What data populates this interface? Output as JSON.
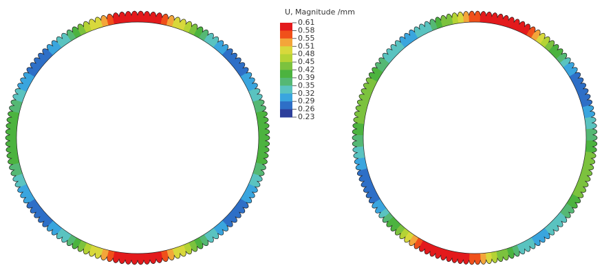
{
  "legend": {
    "title": "U, Magnitude /mm",
    "labels": [
      "0.61",
      "0.58",
      "0.55",
      "0.51",
      "0.48",
      "0.45",
      "0.42",
      "0.39",
      "0.35",
      "0.32",
      "0.29",
      "0.26",
      "0.23"
    ],
    "colors": [
      "#e31a1c",
      "#f0501a",
      "#f3a53a",
      "#d8d83c",
      "#b5d335",
      "#7cc23e",
      "#4cb33f",
      "#55b874",
      "#5ac3c0",
      "#3aa5de",
      "#2e6fc7",
      "#2d3f9b"
    ]
  }
}
